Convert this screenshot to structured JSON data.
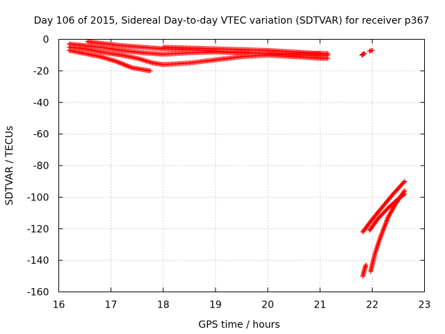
{
  "chart_data": {
    "type": "scatter",
    "title": "Day 106 of 2015, Sidereal Day-to-day VTEC variation (SDTVAR) for receiver p367",
    "xlabel": "GPS time / hours",
    "ylabel": "SDTVAR / TECUs",
    "xlim": [
      16,
      23
    ],
    "ylim": [
      -160,
      0
    ],
    "xticks": [
      16,
      17,
      18,
      19,
      20,
      21,
      22,
      23
    ],
    "yticks": [
      0,
      -20,
      -40,
      -60,
      -80,
      -100,
      -120,
      -140,
      -160
    ],
    "grid": true,
    "marker": "plus",
    "color": "#ff0000",
    "tracks": [
      {
        "x": [
          16.2,
          16.5,
          16.8,
          17.2,
          17.6,
          18.0,
          18.5,
          19.0,
          19.5,
          20.0,
          20.5,
          21.15
        ],
        "y": [
          -3,
          -4,
          -5,
          -7,
          -8.5,
          -9.5,
          -8.5,
          -8,
          -8.5,
          -9,
          -10,
          -10
        ]
      },
      {
        "x": [
          16.2,
          16.5,
          16.8,
          17.2,
          17.5,
          17.8,
          18.0,
          18.5,
          19.0,
          19.5,
          20.0,
          20.5,
          21.0,
          21.15
        ],
        "y": [
          -5,
          -6,
          -8,
          -10,
          -12,
          -15,
          -16,
          -15,
          -13,
          -11,
          -10,
          -11,
          -12,
          -12
        ]
      },
      {
        "x": [
          16.2,
          16.5,
          16.8,
          17.1,
          17.4,
          17.75
        ],
        "y": [
          -7,
          -9,
          -11,
          -14,
          -18,
          -20
        ]
      },
      {
        "x": [
          16.55,
          16.8,
          17.2,
          17.6,
          18.0,
          18.5,
          19.0,
          19.5,
          20.0,
          20.5,
          21.15
        ],
        "y": [
          -1.5,
          -2.5,
          -4,
          -5,
          -6,
          -6.5,
          -7.5,
          -8.5,
          -9,
          -9,
          -9
        ]
      },
      {
        "x": [
          18.0,
          18.5,
          19.0,
          19.5,
          20.0,
          20.5,
          21.0
        ],
        "y": [
          -5,
          -5.5,
          -6,
          -6.5,
          -7,
          -8,
          -9
        ]
      },
      {
        "x": [
          21.8,
          21.85
        ],
        "y": [
          -10,
          -9
        ]
      },
      {
        "x": [
          21.95,
          22.0
        ],
        "y": [
          -7.5,
          -7
        ]
      },
      {
        "x": [
          21.82,
          22.0,
          22.2,
          22.4,
          22.62
        ],
        "y": [
          -122,
          -114,
          -106,
          -98,
          -90
        ]
      },
      {
        "x": [
          21.95,
          22.1,
          22.3,
          22.5,
          22.62
        ],
        "y": [
          -121,
          -114,
          -107,
          -101,
          -98
        ]
      },
      {
        "x": [
          21.82,
          21.85,
          21.88
        ],
        "y": [
          -150,
          -146,
          -143
        ]
      },
      {
        "x": [
          21.97,
          22.05,
          22.15,
          22.3,
          22.45,
          22.62
        ],
        "y": [
          -147,
          -136,
          -126,
          -113,
          -104,
          -96
        ]
      }
    ]
  }
}
